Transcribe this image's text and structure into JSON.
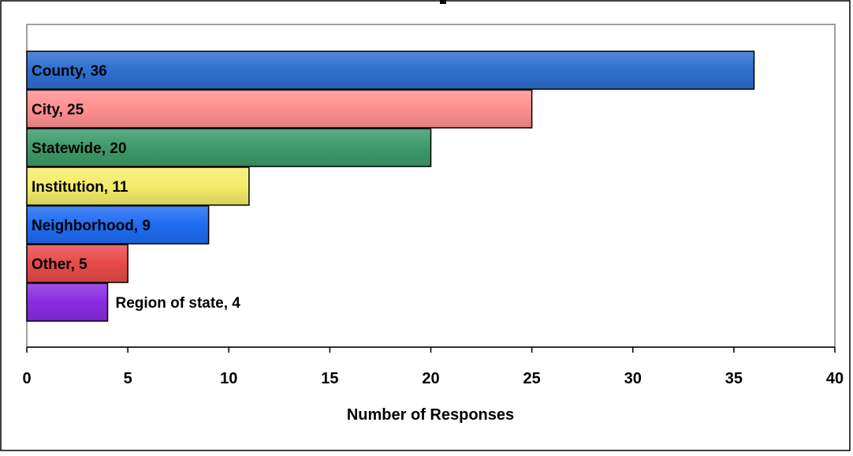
{
  "chart_data": {
    "type": "bar",
    "orientation": "horizontal",
    "categories": [
      "County",
      "City",
      "Statewide",
      "Institution",
      "Neighborhood",
      "Other",
      "Region of state"
    ],
    "values": [
      36,
      25,
      20,
      11,
      9,
      5,
      4
    ],
    "data_labels": [
      "County, 36",
      "City, 25",
      "Statewide, 20",
      "Institution, 11",
      "Neighborhood, 9",
      "Other, 5",
      "Region of state, 4"
    ],
    "colors": [
      "#2e6fd0",
      "#ff8f8f",
      "#3d9a6a",
      "#f4ec6a",
      "#1f6cf2",
      "#e84a4a",
      "#8a2be2"
    ],
    "xlabel": "Number of Responses",
    "ylabel": "",
    "xlim": [
      0,
      40
    ],
    "x_ticks": [
      0,
      5,
      10,
      15,
      20,
      25,
      30,
      35,
      40
    ],
    "grid": false,
    "legend": "none"
  }
}
